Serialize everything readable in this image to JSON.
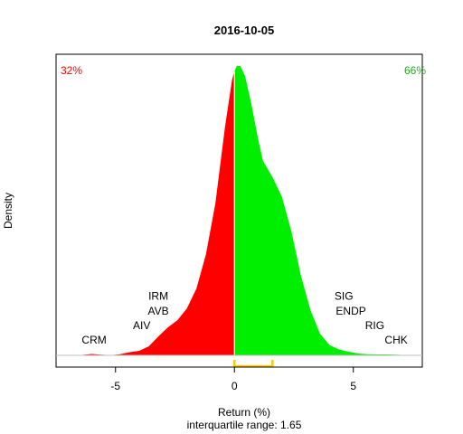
{
  "chart_data": {
    "type": "area",
    "title": "2016-10-05",
    "xlabel": "Return (%)",
    "subtitle": "interquartile range: 1.65",
    "ylabel": "Density",
    "xlim": [
      -7.5,
      7.9
    ],
    "ylim": [
      0,
      0.4
    ],
    "xticks": [
      -5,
      0,
      5
    ],
    "xtick_labels": [
      "-5",
      "0",
      "5"
    ],
    "split_at": 0,
    "negative_color": "#ff0000",
    "positive_color": "#00ee00",
    "left_pct_label": "32%",
    "right_pct_label": "66%",
    "iqr_bracket": {
      "from": 0,
      "to": 1.6,
      "color": "#ffcc00"
    },
    "curve": [
      [
        -6.5,
        0.0003
      ],
      [
        -6.0,
        0.0015
      ],
      [
        -5.6,
        0.0008
      ],
      [
        -5.2,
        0.0003
      ],
      [
        -4.8,
        0.0012
      ],
      [
        -4.4,
        0.0035
      ],
      [
        -4.0,
        0.005
      ],
      [
        -3.6,
        0.01
      ],
      [
        -3.2,
        0.021
      ],
      [
        -2.8,
        0.031
      ],
      [
        -2.4,
        0.039
      ],
      [
        -2.0,
        0.052
      ],
      [
        -1.6,
        0.074
      ],
      [
        -1.2,
        0.112
      ],
      [
        -0.8,
        0.169
      ],
      [
        -0.4,
        0.253
      ],
      [
        -0.1,
        0.306
      ],
      [
        0.0,
        0.316
      ],
      [
        0.1,
        0.3215
      ],
      [
        0.25,
        0.3215
      ],
      [
        0.45,
        0.31
      ],
      [
        0.7,
        0.281
      ],
      [
        1.0,
        0.24
      ],
      [
        1.2,
        0.216
      ],
      [
        1.6,
        0.198
      ],
      [
        2.0,
        0.176
      ],
      [
        2.4,
        0.137
      ],
      [
        2.8,
        0.088
      ],
      [
        3.2,
        0.05
      ],
      [
        3.6,
        0.024
      ],
      [
        4.0,
        0.0115
      ],
      [
        4.4,
        0.0065
      ],
      [
        4.8,
        0.004
      ],
      [
        5.2,
        0.002
      ],
      [
        5.6,
        0.0012
      ],
      [
        6.0,
        0.001
      ],
      [
        6.4,
        0.001
      ],
      [
        6.8,
        0.0008
      ],
      [
        7.2,
        0.0003
      ]
    ],
    "annotations": [
      {
        "text": "CRM",
        "x": -5.9,
        "y": 0.013
      },
      {
        "text": "AIV",
        "x": -3.9,
        "y": 0.029
      },
      {
        "text": "AVB",
        "x": -3.2,
        "y": 0.045
      },
      {
        "text": "IRM",
        "x": -3.2,
        "y": 0.062
      },
      {
        "text": "SIG",
        "x": 4.6,
        "y": 0.062
      },
      {
        "text": "ENDP",
        "x": 4.9,
        "y": 0.045
      },
      {
        "text": "RIG",
        "x": 5.9,
        "y": 0.029
      },
      {
        "text": "CHK",
        "x": 6.8,
        "y": 0.013
      }
    ]
  }
}
